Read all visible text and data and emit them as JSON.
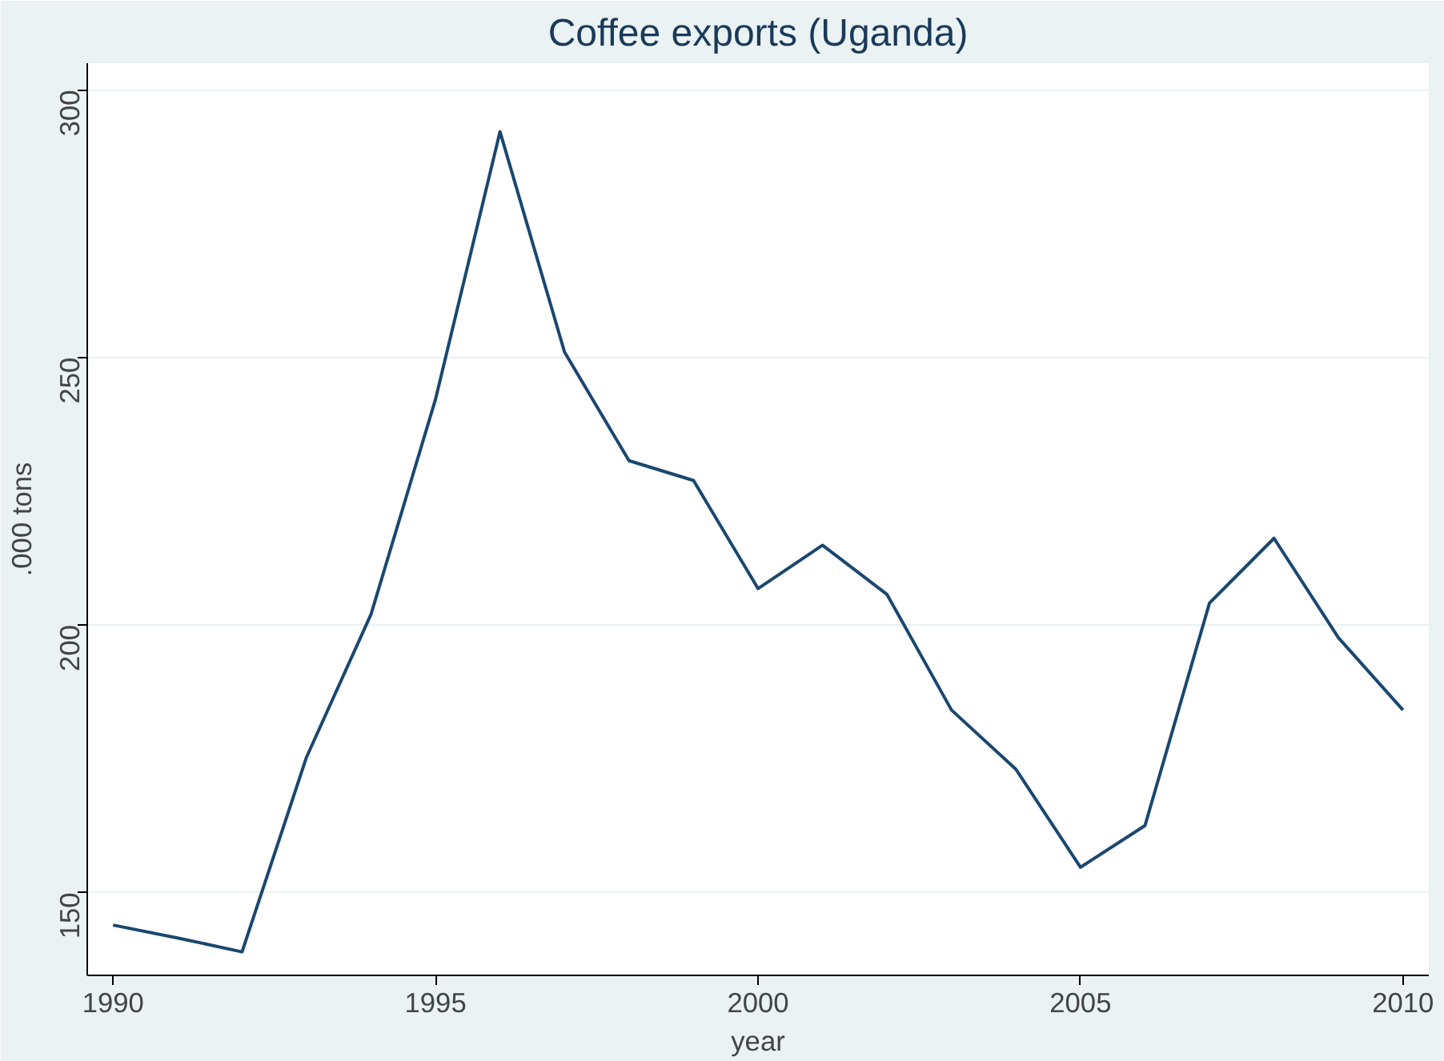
{
  "chart_data": {
    "type": "line",
    "title": "Coffee exports (Uganda)",
    "xlabel": "year",
    "ylabel": ".000 tons",
    "x": [
      1990,
      1991,
      1992,
      1993,
      1994,
      1995,
      1996,
      1997,
      1998,
      1999,
      2000,
      2001,
      2002,
      2003,
      2004,
      2005,
      2006,
      2007,
      2008,
      2009,
      2010
    ],
    "series": [
      {
        "color": "#1a476f",
        "values": [
          143.9,
          141.5,
          138.9,
          175.3,
          202,
          242.2,
          292.2,
          251,
          230.7,
          227,
          206.8,
          214.9,
          205.7,
          184.1,
          173,
          154.7,
          162.5,
          204.1,
          216.2,
          197.6,
          184.1
        ]
      }
    ],
    "xlim": [
      1989.6,
      2010.4
    ],
    "ylim": [
      134.5,
      305
    ],
    "xticks": [
      1990,
      1995,
      2000,
      2005,
      2010
    ],
    "yticks": [
      150,
      200,
      250,
      300
    ],
    "grid": "y",
    "marker": "none",
    "line_style": "solid"
  }
}
